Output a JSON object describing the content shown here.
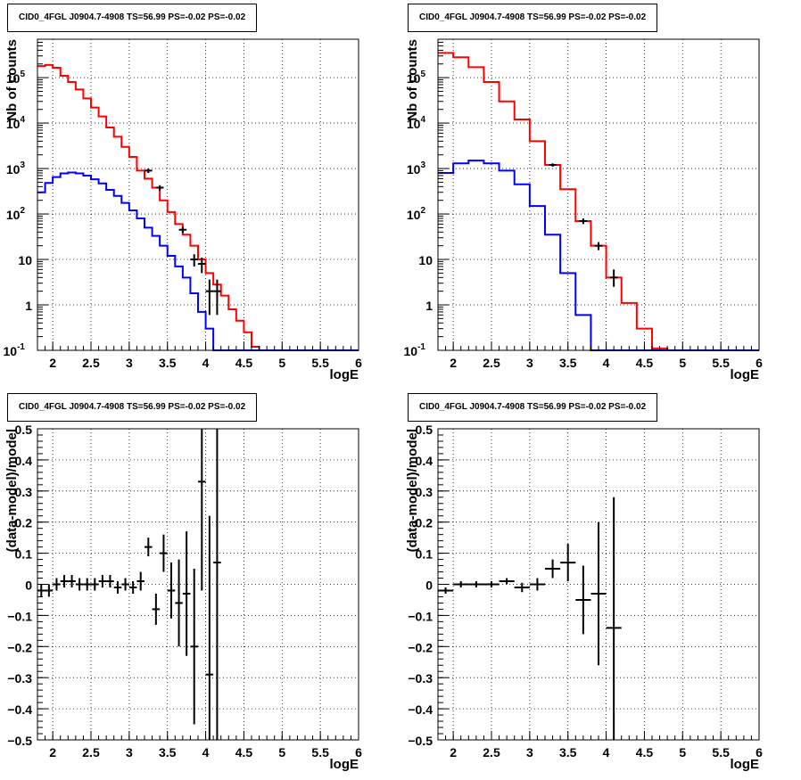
{
  "chart_data": [
    {
      "panel": "top-left",
      "type": "line",
      "title": "CID0_4FGL J0904.7-4908 TS=56.99 PS=-0.02 PS=-0.02",
      "xlabel": "logE",
      "ylabel": "Nb of counts",
      "log_y": true,
      "grid": true,
      "xlim": [
        1.8,
        6
      ],
      "ylim": [
        0.1,
        700000
      ],
      "x_ticks": [
        "2",
        "2.5",
        "3",
        "3.5",
        "4",
        "4.5",
        "5",
        "5.5",
        "6"
      ],
      "y_ticks": [
        "10^-1",
        "1",
        "10",
        "10^2",
        "10^3",
        "10^4",
        "10^5"
      ],
      "bin_edges": [
        1.8,
        1.9,
        2.0,
        2.1,
        2.2,
        2.3,
        2.4,
        2.5,
        2.6,
        2.7,
        2.8,
        2.9,
        3.0,
        3.1,
        3.2,
        3.3,
        3.4,
        3.5,
        3.6,
        3.7,
        3.8,
        3.9,
        4.0,
        4.1,
        4.2,
        4.3,
        4.4,
        4.5,
        4.6,
        4.7,
        4.8,
        4.9,
        5.0,
        5.1,
        5.2,
        5.3,
        5.4,
        5.5,
        5.6,
        5.7,
        5.8,
        5.9,
        6.0
      ],
      "series": [
        {
          "color": "#ff0000",
          "values": [
            180000,
            190000,
            165000,
            110000,
            80000,
            55000,
            35000,
            22000,
            14000,
            8000,
            5000,
            3000,
            1800,
            900,
            600,
            380,
            200,
            110,
            60,
            35,
            20,
            10,
            5,
            2.8,
            1.6,
            0.8,
            0.45,
            0.25,
            0.12,
            0.09,
            0.09,
            0.09,
            0.09,
            0.09,
            0.09,
            0.09,
            0.09,
            0.09,
            0.09,
            0.09,
            0.09,
            0.09
          ]
        },
        {
          "color": "#0000ff",
          "values": [
            300,
            480,
            650,
            780,
            820,
            780,
            700,
            580,
            470,
            340,
            250,
            175,
            120,
            80,
            50,
            33,
            20,
            12,
            7,
            4,
            1.8,
            0.7,
            0.3,
            0.09,
            0.09,
            0.09,
            0.09,
            0.09,
            0.09,
            0.09,
            0.09,
            0.09,
            0.09,
            0.09,
            0.09,
            0.09,
            0.09,
            0.09,
            0.09,
            0.09,
            0.09,
            0.09
          ]
        }
      ],
      "points": [
        {
          "x": 3.25,
          "y": 900,
          "ylo": 800,
          "yhi": 1000
        },
        {
          "x": 3.4,
          "y": 380,
          "ylo": 330,
          "yhi": 430
        },
        {
          "x": 3.7,
          "y": 45,
          "ylo": 38,
          "yhi": 52
        },
        {
          "x": 3.85,
          "y": 10,
          "ylo": 7,
          "yhi": 13
        },
        {
          "x": 3.95,
          "y": 8,
          "ylo": 5,
          "yhi": 11
        },
        {
          "x": 4.05,
          "y": 2,
          "ylo": 0.6,
          "yhi": 3.6
        },
        {
          "x": 4.15,
          "y": 2,
          "ylo": 0.6,
          "yhi": 3.6
        }
      ]
    },
    {
      "panel": "top-right",
      "type": "line",
      "title": "CID0_4FGL J0904.7-4908 TS=56.99 PS=-0.02 PS=-0.02",
      "xlabel": "logE",
      "ylabel": "Nb of counts",
      "log_y": true,
      "grid": true,
      "xlim": [
        1.8,
        6
      ],
      "ylim": [
        0.1,
        700000
      ],
      "x_ticks": [
        "2",
        "2.5",
        "3",
        "3.5",
        "4",
        "4.5",
        "5",
        "5.5",
        "6"
      ],
      "y_ticks": [
        "10^-1",
        "1",
        "10",
        "10^2",
        "10^3",
        "10^4",
        "10^5"
      ],
      "bin_edges": [
        1.8,
        2.0,
        2.2,
        2.4,
        2.6,
        2.8,
        3.0,
        3.2,
        3.4,
        3.6,
        3.8,
        4.0,
        4.2,
        4.4,
        4.6,
        4.8,
        5.0,
        5.2,
        5.4,
        5.6,
        5.8,
        6.0
      ],
      "series": [
        {
          "color": "#ff0000",
          "values": [
            350000,
            280000,
            170000,
            80000,
            30000,
            12000,
            4000,
            1200,
            350,
            70,
            20,
            4,
            1.1,
            0.3,
            0.11,
            0.09,
            0.09,
            0.09,
            0.09,
            0.09,
            0.09
          ]
        },
        {
          "color": "#0000ff",
          "values": [
            800,
            1300,
            1500,
            1300,
            900,
            450,
            150,
            35,
            5,
            0.6,
            0.09,
            0.09,
            0.09,
            0.09,
            0.09,
            0.09,
            0.09,
            0.09,
            0.09,
            0.09,
            0.09
          ]
        }
      ],
      "points": [
        {
          "x": 3.3,
          "y": 1200,
          "ylo": 1100,
          "yhi": 1300
        },
        {
          "x": 3.7,
          "y": 70,
          "ylo": 60,
          "yhi": 80
        },
        {
          "x": 3.9,
          "y": 20,
          "ylo": 16,
          "yhi": 24
        },
        {
          "x": 4.1,
          "y": 4,
          "ylo": 2.5,
          "yhi": 6
        }
      ]
    },
    {
      "panel": "bottom-left",
      "type": "scatter",
      "title": "CID0_4FGL J0904.7-4908 TS=56.99 PS=-0.02 PS=-0.02",
      "xlabel": "logE",
      "ylabel": "(data-model)/model",
      "grid": true,
      "xlim": [
        1.8,
        6
      ],
      "ylim": [
        -0.5,
        0.5
      ],
      "x_ticks": [
        "2",
        "2.5",
        "3",
        "3.5",
        "4",
        "4.5",
        "5",
        "5.5",
        "6"
      ],
      "y_ticks": [
        "-0.5",
        "-0.4",
        "-0.3",
        "-0.2",
        "-0.1",
        "0",
        "0.1",
        "0.2",
        "0.3",
        "0.4",
        "0.5"
      ],
      "points": [
        {
          "x": 1.85,
          "y": -0.02,
          "err": 0.02,
          "xw": 0.05
        },
        {
          "x": 1.95,
          "y": -0.02,
          "err": 0.02,
          "xw": 0.05
        },
        {
          "x": 2.05,
          "y": 0.0,
          "err": 0.02,
          "xw": 0.05
        },
        {
          "x": 2.15,
          "y": 0.01,
          "err": 0.02,
          "xw": 0.05
        },
        {
          "x": 2.25,
          "y": 0.01,
          "err": 0.02,
          "xw": 0.05
        },
        {
          "x": 2.35,
          "y": 0.0,
          "err": 0.02,
          "xw": 0.05
        },
        {
          "x": 2.45,
          "y": 0.0,
          "err": 0.02,
          "xw": 0.05
        },
        {
          "x": 2.55,
          "y": 0.0,
          "err": 0.02,
          "xw": 0.05
        },
        {
          "x": 2.65,
          "y": 0.01,
          "err": 0.02,
          "xw": 0.05
        },
        {
          "x": 2.75,
          "y": 0.01,
          "err": 0.02,
          "xw": 0.05
        },
        {
          "x": 2.85,
          "y": -0.01,
          "err": 0.02,
          "xw": 0.05
        },
        {
          "x": 2.95,
          "y": 0.0,
          "err": 0.02,
          "xw": 0.05
        },
        {
          "x": 3.05,
          "y": -0.01,
          "err": 0.02,
          "xw": 0.05
        },
        {
          "x": 3.15,
          "y": 0.01,
          "err": 0.03,
          "xw": 0.05
        },
        {
          "x": 3.25,
          "y": 0.12,
          "err": 0.03,
          "xw": 0.05
        },
        {
          "x": 3.35,
          "y": -0.08,
          "err": 0.05,
          "xw": 0.05
        },
        {
          "x": 3.45,
          "y": 0.1,
          "err": 0.06,
          "xw": 0.05
        },
        {
          "x": 3.55,
          "y": -0.02,
          "err": 0.09,
          "xw": 0.05
        },
        {
          "x": 3.65,
          "y": -0.06,
          "err": 0.14,
          "xw": 0.05
        },
        {
          "x": 3.75,
          "y": -0.03,
          "err": 0.2,
          "xw": 0.05
        },
        {
          "x": 3.85,
          "y": -0.2,
          "err": 0.25,
          "xw": 0.05
        },
        {
          "x": 3.95,
          "y": 0.33,
          "err": 0.35,
          "xw": 0.05
        },
        {
          "x": 4.05,
          "y": -0.29,
          "err": 0.51,
          "xw": 0.05
        },
        {
          "x": 4.15,
          "y": 0.07,
          "err": 0.6,
          "xw": 0.05
        }
      ]
    },
    {
      "panel": "bottom-right",
      "type": "scatter",
      "title": "CID0_4FGL J0904.7-4908 TS=56.99 PS=-0.02 PS=-0.02",
      "xlabel": "logE",
      "ylabel": "(data-model)/model",
      "grid": true,
      "xlim": [
        1.8,
        6
      ],
      "ylim": [
        -0.5,
        0.5
      ],
      "x_ticks": [
        "2",
        "2.5",
        "3",
        "3.5",
        "4",
        "4.5",
        "5",
        "5.5",
        "6"
      ],
      "y_ticks": [
        "-0.5",
        "-0.4",
        "-0.3",
        "-0.2",
        "-0.1",
        "0",
        "0.1",
        "0.2",
        "0.3",
        "0.4",
        "0.5"
      ],
      "points": [
        {
          "x": 1.9,
          "y": -0.02,
          "err": 0.01,
          "xw": 0.1
        },
        {
          "x": 2.1,
          "y": 0.0,
          "err": 0.01,
          "xw": 0.1
        },
        {
          "x": 2.3,
          "y": 0.0,
          "err": 0.01,
          "xw": 0.1
        },
        {
          "x": 2.5,
          "y": 0.0,
          "err": 0.01,
          "xw": 0.1
        },
        {
          "x": 2.7,
          "y": 0.01,
          "err": 0.01,
          "xw": 0.1
        },
        {
          "x": 2.9,
          "y": -0.01,
          "err": 0.015,
          "xw": 0.1
        },
        {
          "x": 3.1,
          "y": 0.0,
          "err": 0.02,
          "xw": 0.1
        },
        {
          "x": 3.3,
          "y": 0.05,
          "err": 0.03,
          "xw": 0.1
        },
        {
          "x": 3.5,
          "y": 0.07,
          "err": 0.06,
          "xw": 0.1
        },
        {
          "x": 3.7,
          "y": -0.05,
          "err": 0.11,
          "xw": 0.1
        },
        {
          "x": 3.9,
          "y": -0.03,
          "err": 0.23,
          "xw": 0.1
        },
        {
          "x": 4.1,
          "y": -0.14,
          "err": 0.42,
          "xw": 0.1
        }
      ]
    }
  ]
}
